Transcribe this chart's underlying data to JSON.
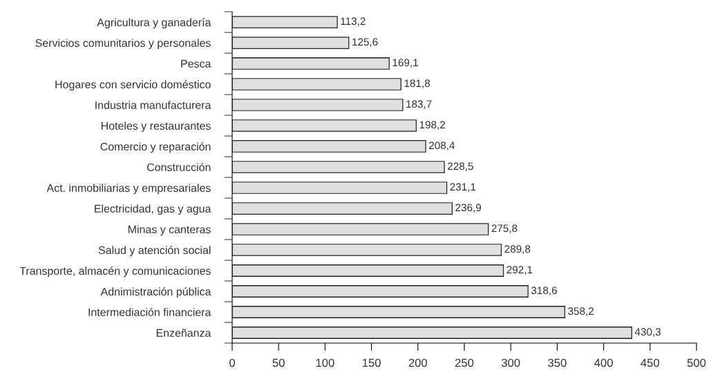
{
  "chart_data": {
    "type": "bar",
    "orientation": "horizontal",
    "categories": [
      "Agricultura y ganadería",
      "Servicios comunitarios y personales",
      "Pesca",
      "Hogares con servicio doméstico",
      "Industria manufacturera",
      "Hoteles y restaurantes",
      "Comercio y reparación",
      "Construcción",
      "Act. inmobiliarias y empresariales",
      "Electricidad, gas y agua",
      "Minas y canteras",
      "Salud y atención social",
      "Transporte, almacén y comunicaciones",
      "Adnimistración pública",
      "Intermediación financiera",
      "Enzeñanza"
    ],
    "values": [
      113.2,
      125.6,
      169.1,
      181.8,
      183.7,
      198.2,
      208.4,
      228.5,
      231.1,
      236.9,
      275.8,
      289.8,
      292.1,
      318.6,
      358.2,
      430.3
    ],
    "value_labels": [
      "113,2",
      "125,6",
      "169,1",
      "181,8",
      "183,7",
      "198,2",
      "208,4",
      "228,5",
      "231,1",
      "236,9",
      "275,8",
      "289,8",
      "292,1",
      "318,6",
      "358,2",
      "430,3"
    ],
    "color": "#e0e0e0",
    "xlim": [
      0,
      500
    ],
    "xticks": [
      0,
      50,
      100,
      150,
      200,
      250,
      300,
      350,
      400,
      450,
      500
    ],
    "grid": false,
    "legend": false
  }
}
